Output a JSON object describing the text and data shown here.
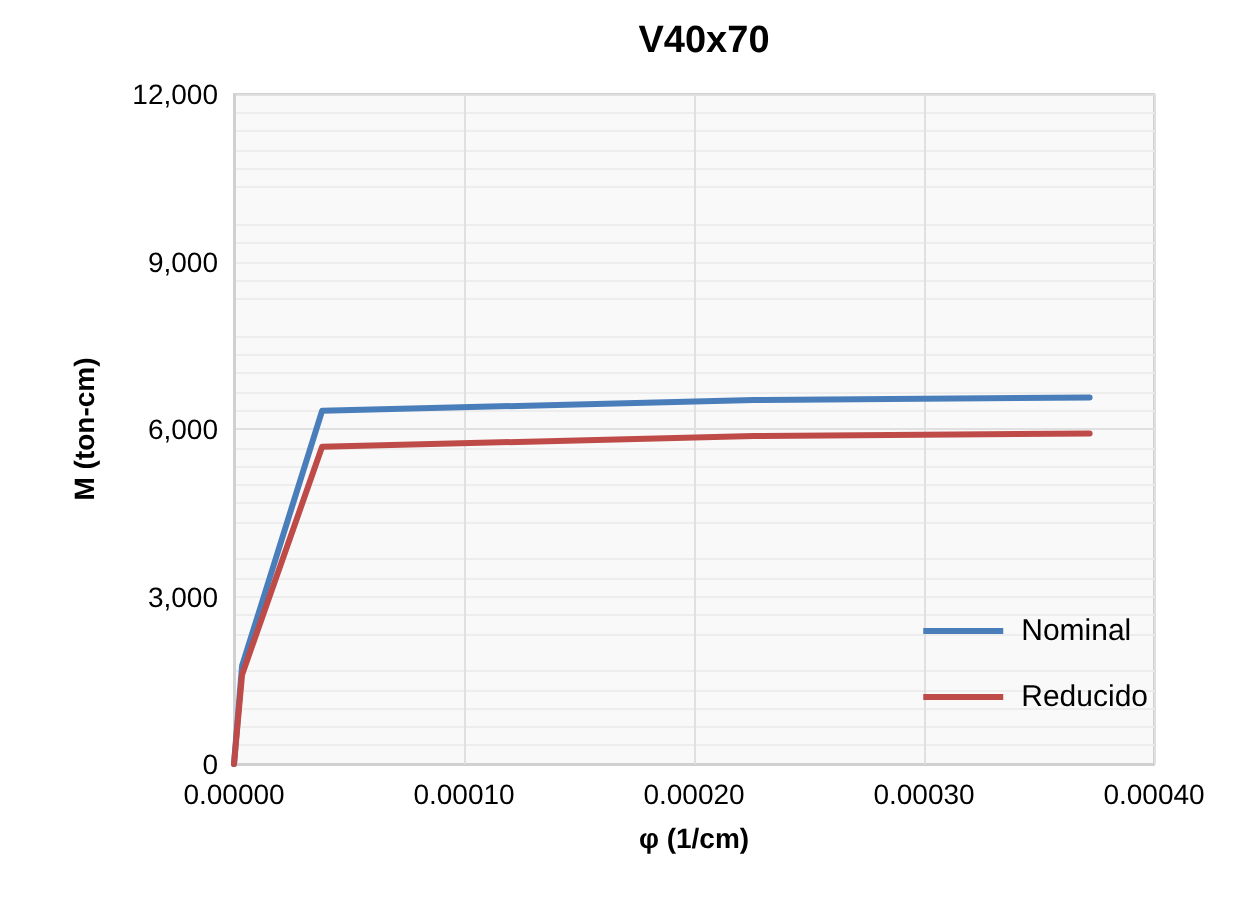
{
  "chart_data": {
    "type": "line",
    "title": "V40x70",
    "xlabel": "φ (1/cm)",
    "ylabel": "M (ton-cm)",
    "series": [
      {
        "name": "Nominal",
        "color": "#4a7ebb",
        "x": [
          0,
          3.5e-06,
          3.83e-05,
          0.000226,
          0.000372
        ],
        "values": [
          0,
          1755,
          6326,
          6519,
          6566
        ]
      },
      {
        "name": "Reducido",
        "color": "#be4b48",
        "x": [
          0,
          3.5e-06,
          3.83e-05,
          0.000226,
          0.000372
        ],
        "values": [
          0,
          1598,
          5681,
          5875,
          5921
        ]
      }
    ],
    "xlim": [
      0,
      0.0004
    ],
    "xticks": [
      {
        "value": 0,
        "label": "0.00000"
      },
      {
        "value": 0.0001,
        "label": "0.00010"
      },
      {
        "value": 0.0002,
        "label": "0.00020"
      },
      {
        "value": 0.0003,
        "label": "0.00030"
      },
      {
        "value": 0.0004,
        "label": "0.00040"
      }
    ],
    "ylim": [
      0,
      12000
    ],
    "yticks": [
      {
        "value": 0,
        "label": "0"
      },
      {
        "value": 3000,
        "label": "3,000"
      },
      {
        "value": 6000,
        "label": "6,000"
      },
      {
        "value": 9000,
        "label": "9,000"
      },
      {
        "value": 12000,
        "label": "12,000"
      }
    ],
    "grid": true,
    "legend": "bottom right",
    "marker": "none",
    "line_style": "solid"
  }
}
